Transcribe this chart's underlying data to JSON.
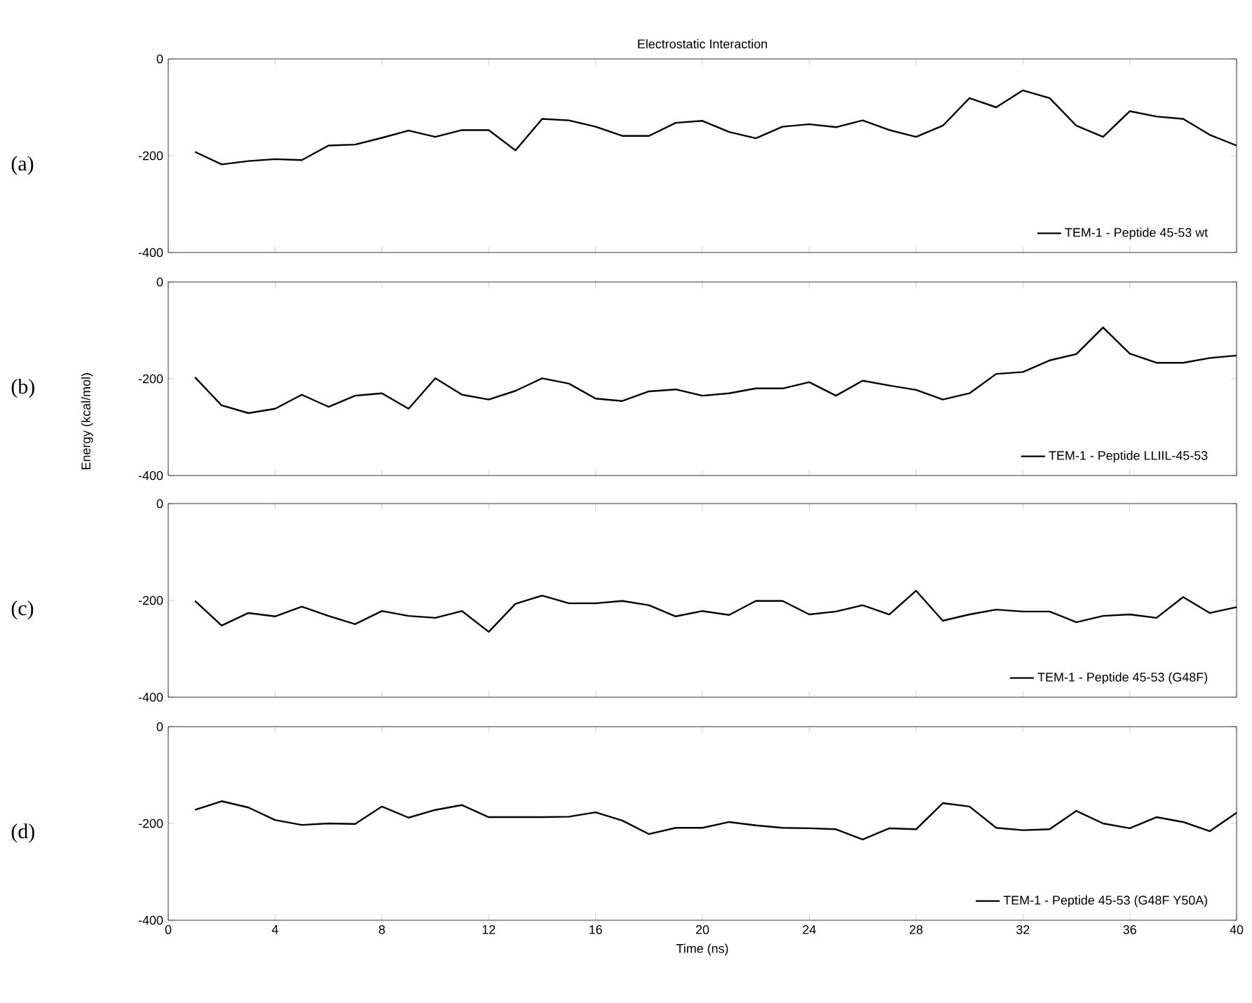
{
  "chart_data": [
    {
      "type": "line",
      "title": "Electrostatic Interaction",
      "annotations": [
        "(a)"
      ],
      "x": [
        1,
        2,
        3,
        4,
        5,
        6,
        7,
        8,
        9,
        10,
        11,
        12,
        13,
        14,
        15,
        16,
        17,
        18,
        19,
        20,
        21,
        22,
        23,
        24,
        25,
        26,
        27,
        28,
        29,
        30,
        31,
        32,
        33,
        34,
        35,
        36,
        37,
        38,
        39,
        40
      ],
      "series": [
        {
          "name": "TEM-1 - Peptide 45-53 wt",
          "color": "#000000",
          "values": [
            -192,
            -218,
            -211,
            -207,
            -209,
            -179,
            -177,
            -163,
            -148,
            -161,
            -147,
            -147,
            -189,
            -124,
            -127,
            -140,
            -159,
            -159,
            -132,
            -128,
            -151,
            -164,
            -140,
            -135,
            -141,
            -127,
            -147,
            -161,
            -138,
            -81,
            -100,
            -65,
            -81,
            -138,
            -161,
            -108,
            -119,
            -124,
            -157,
            -179
          ]
        }
      ],
      "xlim": [
        0,
        40
      ],
      "xticks": [
        0,
        4,
        8,
        12,
        16,
        20,
        24,
        28,
        32,
        36,
        40
      ],
      "ylim": [
        -400,
        0
      ],
      "yticks": [
        -400,
        -200,
        0
      ],
      "legend": "bottom right",
      "tick_labels": "y"
    },
    {
      "type": "line",
      "ylabel": "Energy (kcal/mol)",
      "annotations": [
        "(b)"
      ],
      "x": [
        1,
        2,
        3,
        4,
        5,
        6,
        7,
        8,
        9,
        10,
        11,
        12,
        13,
        14,
        15,
        16,
        17,
        18,
        19,
        20,
        21,
        22,
        23,
        24,
        25,
        26,
        27,
        28,
        29,
        30,
        31,
        32,
        33,
        34,
        35,
        36,
        37,
        38,
        39,
        40
      ],
      "series": [
        {
          "name": "TEM-1 - Peptide LLIIL-45-53",
          "color": "#000000",
          "values": [
            -197,
            -255,
            -271,
            -262,
            -233,
            -258,
            -235,
            -230,
            -262,
            -199,
            -233,
            -243,
            -225,
            -199,
            -210,
            -241,
            -246,
            -226,
            -222,
            -235,
            -230,
            -220,
            -220,
            -207,
            -235,
            -204,
            -214,
            -223,
            -243,
            -230,
            -190,
            -186,
            -162,
            -149,
            -94,
            -148,
            -167,
            -167,
            -157,
            -152
          ]
        }
      ],
      "xlim": [
        0,
        40
      ],
      "xticks": [
        0,
        4,
        8,
        12,
        16,
        20,
        24,
        28,
        32,
        36,
        40
      ],
      "ylim": [
        -400,
        0
      ],
      "yticks": [
        -400,
        -200,
        0
      ],
      "legend": "bottom right",
      "tick_labels": "y"
    },
    {
      "type": "line",
      "annotations": [
        "(c)"
      ],
      "x": [
        1,
        2,
        3,
        4,
        5,
        6,
        7,
        8,
        9,
        10,
        11,
        12,
        13,
        14,
        15,
        16,
        17,
        18,
        19,
        20,
        21,
        22,
        23,
        24,
        25,
        26,
        27,
        28,
        29,
        30,
        31,
        32,
        33,
        34,
        35,
        36,
        37,
        38,
        39,
        40
      ],
      "series": [
        {
          "name": "TEM-1 - Peptide 45-53 (G48F)",
          "color": "#000000",
          "values": [
            -201,
            -252,
            -226,
            -233,
            -213,
            -232,
            -249,
            -222,
            -232,
            -236,
            -222,
            -265,
            -207,
            -190,
            -206,
            -206,
            -201,
            -210,
            -233,
            -222,
            -230,
            -201,
            -201,
            -229,
            -223,
            -210,
            -229,
            -180,
            -242,
            -229,
            -219,
            -223,
            -223,
            -245,
            -232,
            -229,
            -236,
            -193,
            -226,
            -214
          ]
        }
      ],
      "xlim": [
        0,
        40
      ],
      "xticks": [
        0,
        4,
        8,
        12,
        16,
        20,
        24,
        28,
        32,
        36,
        40
      ],
      "ylim": [
        -400,
        0
      ],
      "yticks": [
        -400,
        -200,
        0
      ],
      "legend": "bottom right",
      "tick_labels": "y"
    },
    {
      "type": "line",
      "xlabel": "Time (ns)",
      "annotations": [
        "(d)"
      ],
      "x": [
        1,
        2,
        3,
        4,
        5,
        6,
        7,
        8,
        9,
        10,
        11,
        12,
        13,
        14,
        15,
        16,
        17,
        18,
        19,
        20,
        21,
        22,
        23,
        24,
        25,
        26,
        27,
        28,
        29,
        30,
        31,
        32,
        33,
        34,
        35,
        36,
        37,
        38,
        39,
        40
      ],
      "series": [
        {
          "name": "TEM-1 - Peptide 45-53 (G48F Y50A)",
          "color": "#000000",
          "values": [
            -172,
            -154,
            -167,
            -193,
            -203,
            -200,
            -201,
            -165,
            -188,
            -172,
            -162,
            -187,
            -187,
            -187,
            -186,
            -177,
            -194,
            -222,
            -209,
            -209,
            -197,
            -204,
            -209,
            -210,
            -212,
            -233,
            -210,
            -212,
            -158,
            -165,
            -209,
            -214,
            -212,
            -174,
            -200,
            -210,
            -187,
            -197,
            -216,
            -178
          ]
        }
      ],
      "xlim": [
        0,
        40
      ],
      "xticks": [
        0,
        4,
        8,
        12,
        16,
        20,
        24,
        28,
        32,
        36,
        40
      ],
      "ylim": [
        -400,
        0
      ],
      "yticks": [
        -400,
        -200,
        0
      ],
      "legend": "bottom right"
    }
  ]
}
